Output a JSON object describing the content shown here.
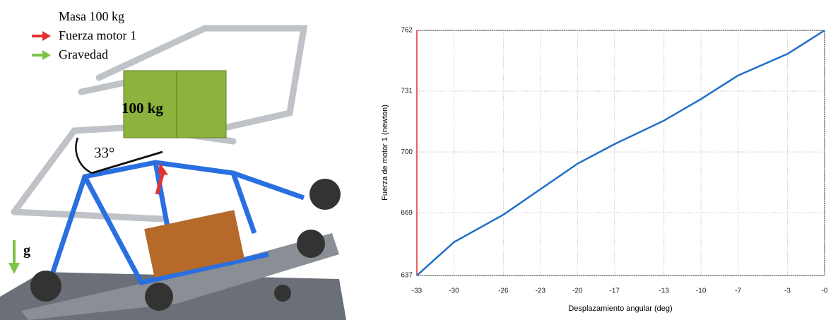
{
  "illustration": {
    "legend": [
      "Masa 100 kg",
      "Fuerza motor 1",
      "Gravedad"
    ],
    "box_label": "100 kg",
    "angle_label": "33°",
    "gravity_label": "g"
  },
  "chart_data": {
    "type": "line",
    "y_label": "Fuerza de motor 1 (newton)",
    "x_label": "Desplazamiento angular (deg)",
    "x": [
      -33,
      -30,
      -26,
      -23,
      -20,
      -17,
      -13,
      -10,
      -7,
      -3,
      0
    ],
    "values": [
      637,
      654,
      668,
      681,
      694,
      704,
      716,
      727,
      739,
      750,
      762
    ],
    "color": "#1f6fc8",
    "axis_color": "#e0302a",
    "xlim": [
      -33,
      0
    ],
    "ylim": [
      637,
      762
    ],
    "xticks": [
      -33,
      -30,
      -26,
      -23,
      -20,
      -17,
      -13,
      -10,
      -7,
      -3,
      {
        "value": 0,
        "label": "-0"
      }
    ],
    "yticks": [
      637,
      669,
      700,
      731,
      762
    ],
    "grid": true
  }
}
